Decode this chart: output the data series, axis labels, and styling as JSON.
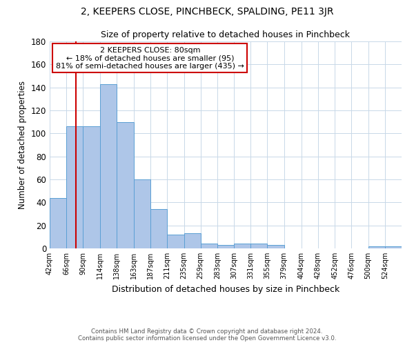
{
  "title": "2, KEEPERS CLOSE, PINCHBECK, SPALDING, PE11 3JR",
  "subtitle": "Size of property relative to detached houses in Pinchbeck",
  "xlabel": "Distribution of detached houses by size in Pinchbeck",
  "ylabel": "Number of detached properties",
  "bar_color": "#aec6e8",
  "bar_edge_color": "#5a9fd4",
  "categories": [
    "42sqm",
    "66sqm",
    "90sqm",
    "114sqm",
    "138sqm",
    "163sqm",
    "187sqm",
    "211sqm",
    "235sqm",
    "259sqm",
    "283sqm",
    "307sqm",
    "331sqm",
    "355sqm",
    "379sqm",
    "404sqm",
    "428sqm",
    "452sqm",
    "476sqm",
    "500sqm",
    "524sqm"
  ],
  "values": [
    44,
    106,
    106,
    143,
    110,
    60,
    34,
    12,
    13,
    4,
    3,
    4,
    4,
    3,
    0,
    0,
    0,
    0,
    0,
    2,
    2
  ],
  "bin_edges": [
    42,
    66,
    90,
    114,
    138,
    163,
    187,
    211,
    235,
    259,
    283,
    307,
    331,
    355,
    379,
    404,
    428,
    452,
    476,
    500,
    524,
    548
  ],
  "property_size": 80,
  "vline_color": "#cc0000",
  "annotation_line1": "2 KEEPERS CLOSE: 80sqm",
  "annotation_line2": "← 18% of detached houses are smaller (95)",
  "annotation_line3": "81% of semi-detached houses are larger (435) →",
  "annotation_box_color": "#ffffff",
  "annotation_box_edge_color": "#cc0000",
  "ylim": [
    0,
    180
  ],
  "yticks": [
    0,
    20,
    40,
    60,
    80,
    100,
    120,
    140,
    160,
    180
  ],
  "footer": "Contains HM Land Registry data © Crown copyright and database right 2024.\nContains public sector information licensed under the Open Government Licence v3.0.",
  "background_color": "#ffffff",
  "grid_color": "#c8d8e8"
}
